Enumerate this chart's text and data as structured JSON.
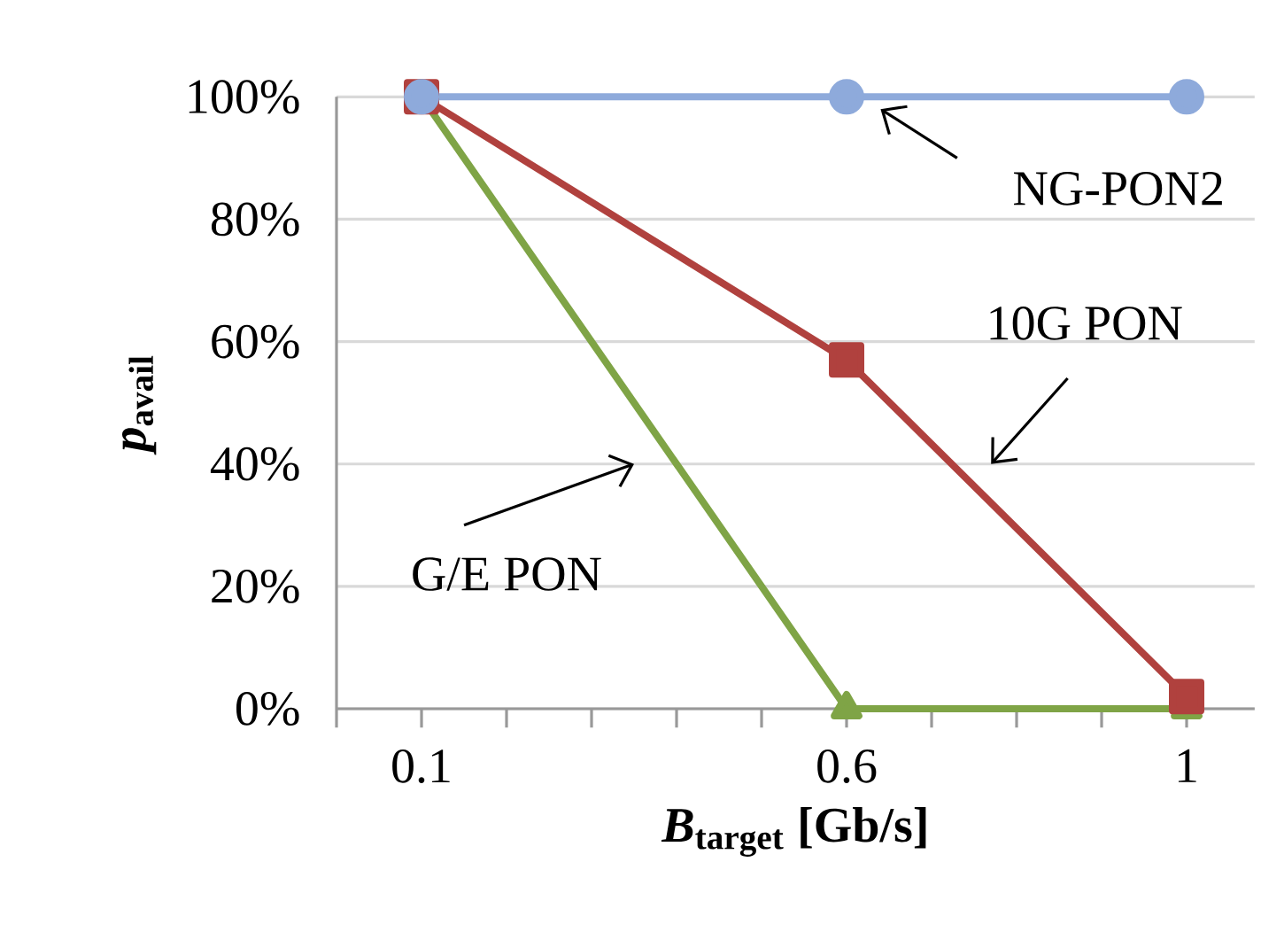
{
  "chart_data": {
    "type": "line",
    "xlabel": "*B*$_{target}$ [Gb/s]",
    "ylabel": "*p*$_{avail}$",
    "x": [
      0.1,
      0.6,
      1
    ],
    "xlim": [
      0,
      1.08
    ],
    "xticks": [
      {
        "value": 0,
        "label": null
      },
      {
        "value": 0.1,
        "label": "0.1"
      },
      {
        "value": 0.2,
        "label": null
      },
      {
        "value": 0.3,
        "label": null
      },
      {
        "value": 0.4,
        "label": null
      },
      {
        "value": 0.5,
        "label": null
      },
      {
        "value": 0.6,
        "label": "0.6"
      },
      {
        "value": 0.7,
        "label": null
      },
      {
        "value": 0.8,
        "label": null
      },
      {
        "value": 0.9,
        "label": null
      },
      {
        "value": 1,
        "label": "1"
      }
    ],
    "ylim": [
      0,
      100
    ],
    "yticks": [
      {
        "value": 0,
        "label": "0%"
      },
      {
        "value": 20,
        "label": "20%"
      },
      {
        "value": 40,
        "label": "40%"
      },
      {
        "value": 60,
        "label": "60%"
      },
      {
        "value": 80,
        "label": "80%"
      },
      {
        "value": 100,
        "label": "100%"
      }
    ],
    "grid": "y",
    "series": [
      {
        "name": "NG-PON2",
        "color": "#8eaadb",
        "marker": "circle",
        "values": [
          100,
          100,
          100
        ]
      },
      {
        "name": "10G PON",
        "color": "#b0413e",
        "marker": "square",
        "values": [
          100,
          57,
          2
        ]
      },
      {
        "name": "G/E PON",
        "color": "#7fa446",
        "marker": "triangle",
        "values": [
          100,
          0,
          0
        ]
      }
    ]
  }
}
